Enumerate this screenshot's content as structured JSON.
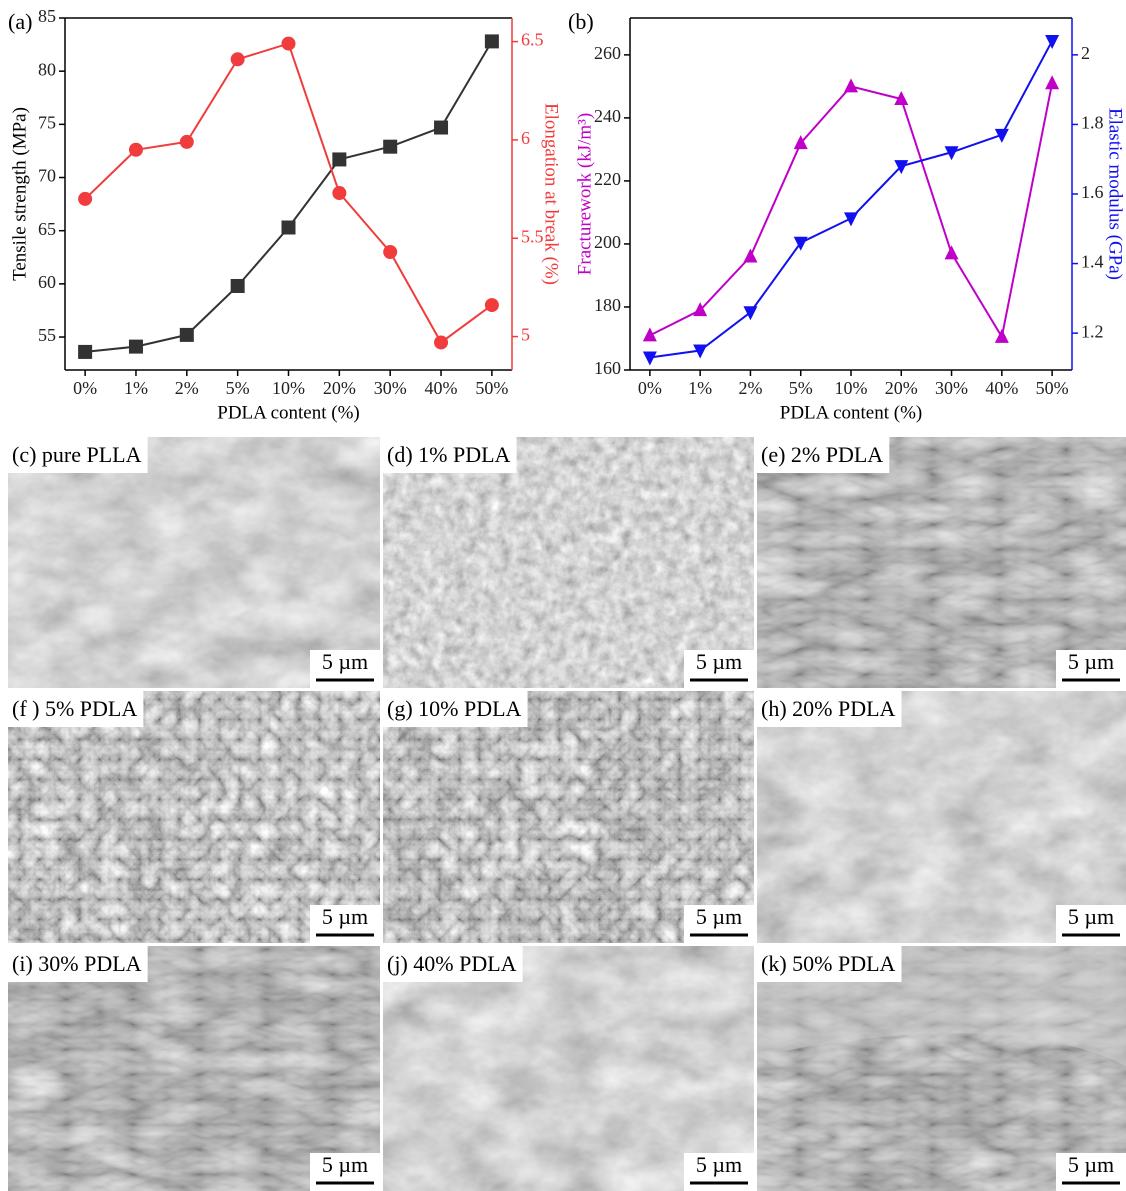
{
  "chart_data": [
    {
      "type": "line",
      "panel_label": "(a)",
      "x_label": "PDLA content (%)",
      "y_label": "Tensile strength (MPa)",
      "y2_label": "Elongation at break (%)",
      "categories": [
        "0%",
        "1%",
        "2%",
        "5%",
        "10%",
        "20%",
        "30%",
        "40%",
        "50%"
      ],
      "ylim": [
        51.9,
        85
      ],
      "yticks": [
        55,
        60,
        65,
        70,
        75,
        80,
        85
      ],
      "y2lim": [
        4.83,
        6.62
      ],
      "y2ticks": [
        5,
        5.5,
        6,
        6.5
      ],
      "series": [
        {
          "color": "#333333",
          "marker": "square",
          "values": [
            53.6,
            54.1,
            55.2,
            59.8,
            65.3,
            71.7,
            72.9,
            74.7,
            82.8
          ]
        },
        {
          "color": "#f03c3c",
          "marker": "circle",
          "axis": "y2",
          "values": [
            5.7,
            5.95,
            5.99,
            6.41,
            6.49,
            5.73,
            5.43,
            4.97,
            5.16
          ]
        }
      ]
    },
    {
      "type": "line",
      "panel_label": "(b)",
      "x_label": "PDLA content (%)",
      "y_label": "Fracturework (kJ/m³)",
      "y2_label": "Elastic modulus (GPa)",
      "categories": [
        "0%",
        "1%",
        "2%",
        "5%",
        "10%",
        "20%",
        "30%",
        "40%",
        "50%"
      ],
      "ylim": [
        160,
        271.7
      ],
      "yticks": [
        160,
        180,
        200,
        220,
        240,
        260
      ],
      "y2lim": [
        1.094,
        2.106
      ],
      "y2ticks": [
        1.2,
        1.4,
        1.6,
        1.8,
        2
      ],
      "series": [
        {
          "color": "#c000c8",
          "marker": "triangle-up",
          "values": [
            171,
            179,
            196,
            232,
            250,
            246,
            197,
            170.5,
            251
          ]
        },
        {
          "color": "#1010f0",
          "marker": "triangle-down",
          "axis": "y2",
          "values": [
            1.13,
            1.15,
            1.26,
            1.46,
            1.53,
            1.68,
            1.72,
            1.77,
            2.04
          ]
        }
      ]
    }
  ],
  "panels": [
    {
      "label": "(c) pure PLLA",
      "scale": "5 µm"
    },
    {
      "label": "(d) 1% PDLA",
      "scale": "5 µm"
    },
    {
      "label": "(e) 2% PDLA",
      "scale": "5 µm"
    },
    {
      "label": "(f ) 5% PDLA",
      "scale": "5 µm"
    },
    {
      "label": "(g) 10% PDLA",
      "scale": "5 µm"
    },
    {
      "label": "(h) 20% PDLA",
      "scale": "5 µm"
    },
    {
      "label": "(i) 30% PDLA",
      "scale": "5 µm"
    },
    {
      "label": "(j) 40% PDLA",
      "scale": "5 µm"
    },
    {
      "label": "(k) 50% PDLA",
      "scale": "5 µm"
    }
  ]
}
